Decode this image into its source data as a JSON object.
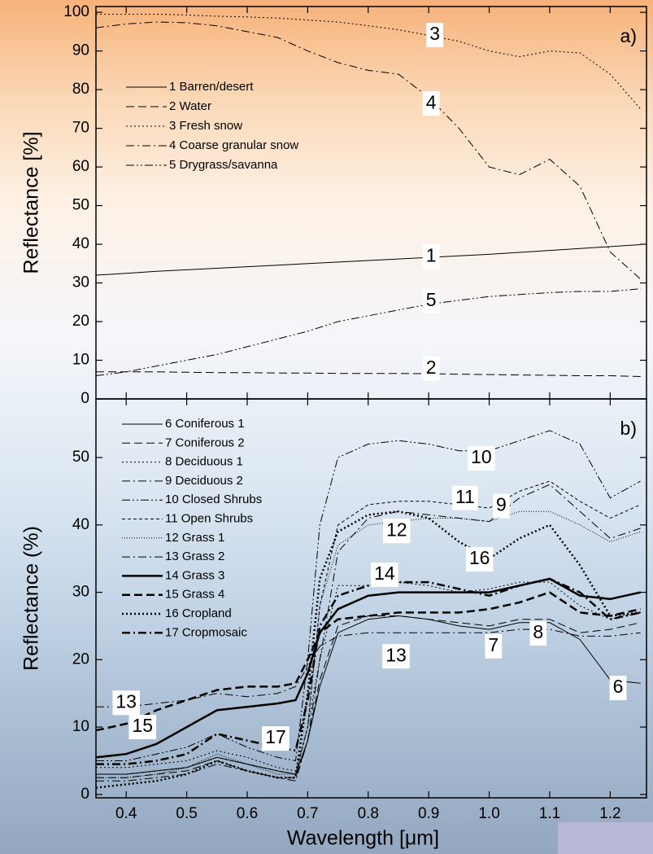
{
  "chart_data": [
    {
      "type": "line",
      "ylabel": "Reflectance [%]",
      "panel_label": "a)",
      "color": "#000000",
      "xlim": [
        0.35,
        1.26
      ],
      "ylim": [
        0,
        101.5
      ],
      "yticks": [
        0,
        10,
        20,
        30,
        40,
        50,
        60,
        70,
        80,
        90,
        100
      ],
      "x": [
        0.35,
        0.4,
        0.45,
        0.5,
        0.55,
        0.6,
        0.65,
        0.7,
        0.75,
        0.8,
        0.85,
        0.9,
        0.95,
        1.0,
        1.05,
        1.1,
        1.15,
        1.2,
        1.25
      ],
      "series": [
        {
          "name": "1 Barren/desert",
          "dash": "solid",
          "width": 1,
          "values": [
            32,
            32.5,
            33,
            33.4,
            33.8,
            34.2,
            34.6,
            35,
            35.4,
            35.8,
            36.2,
            36.6,
            37,
            37.4,
            37.9,
            38.4,
            38.9,
            39.4,
            39.9
          ]
        },
        {
          "name": "2 Water",
          "dash": "dashed",
          "width": 1,
          "values": [
            7,
            7,
            7,
            6.9,
            6.8,
            6.8,
            6.7,
            6.7,
            6.6,
            6.6,
            6.6,
            6.5,
            6.4,
            6.3,
            6.2,
            6.1,
            6,
            6,
            5.8
          ]
        },
        {
          "name": "3 Fresh snow",
          "dash": "dotted",
          "width": 1,
          "values": [
            99.5,
            99.5,
            99.5,
            99.3,
            99,
            98.8,
            98.5,
            98,
            97.5,
            96.5,
            95.5,
            94,
            92.5,
            90,
            88.5,
            90,
            89.5,
            84,
            75
          ]
        },
        {
          "name": "4 Coarse granular snow",
          "dash": "dashdot",
          "width": 1,
          "values": [
            96,
            97,
            97.5,
            97.3,
            96.5,
            95,
            93.5,
            90,
            87,
            85,
            84,
            78,
            70,
            60,
            58,
            62,
            55,
            38,
            31
          ]
        },
        {
          "name": "5 Drygrass/savanna",
          "dash": "dashdotdot",
          "width": 1,
          "values": [
            6,
            7,
            8.5,
            10,
            11.5,
            13.5,
            15.5,
            17.5,
            20,
            21.5,
            23,
            24.5,
            25.5,
            26.5,
            27,
            27.5,
            27.8,
            27.8,
            28.5
          ]
        }
      ],
      "annotations": [
        {
          "text": "3",
          "x": 0.91,
          "y": 94.1
        },
        {
          "text": "4",
          "x": 0.904,
          "y": 76.4
        },
        {
          "text": "1",
          "x": 0.904,
          "y": 36.8
        },
        {
          "text": "5",
          "x": 0.904,
          "y": 25.3
        },
        {
          "text": "2",
          "x": 0.904,
          "y": 7.8
        }
      ]
    },
    {
      "type": "line",
      "ylabel": "Reflectance (%)",
      "xlabel": "Wavelength [μm]",
      "panel_label": "b)",
      "color": "#000000",
      "xlim": [
        0.35,
        1.26
      ],
      "ylim": [
        -0.5,
        58.7
      ],
      "xticks": [
        0.4,
        0.5,
        0.6,
        0.7,
        0.8,
        0.9,
        {
          "value": 1,
          "label": "1.0"
        },
        1.1,
        1.2
      ],
      "yticks": [
        0,
        10,
        20,
        30,
        40,
        50
      ],
      "x": [
        0.35,
        0.4,
        0.45,
        0.5,
        0.55,
        0.6,
        0.65,
        0.68,
        0.7,
        0.72,
        0.75,
        0.8,
        0.85,
        0.9,
        0.95,
        1.0,
        1.05,
        1.1,
        1.15,
        1.2,
        1.25
      ],
      "series": [
        {
          "name": "6 Coniferous 1",
          "dash": "solid",
          "width": 1,
          "values": [
            3,
            3,
            3.5,
            4,
            5.5,
            4.5,
            3.5,
            3,
            8,
            16,
            24,
            26,
            26.5,
            26,
            25,
            24.5,
            25.5,
            25.5,
            23,
            17,
            16.5
          ]
        },
        {
          "name": "7 Coniferous 2",
          "dash": "dashed",
          "width": 1,
          "values": [
            2.5,
            2.5,
            3,
            3.5,
            5,
            3.5,
            2.5,
            2.5,
            8,
            17,
            25,
            26.5,
            26.5,
            26,
            25.5,
            25,
            26,
            26,
            24,
            24.5,
            25.5
          ]
        },
        {
          "name": "8 Deciduous 1",
          "dash": "dotted",
          "width": 1,
          "values": [
            4,
            4,
            4.5,
            5,
            6.5,
            5.5,
            4,
            3.5,
            10,
            20,
            31,
            31,
            31.5,
            31,
            30,
            30.5,
            31.5,
            31.5,
            28,
            26,
            27
          ]
        },
        {
          "name": "9 Deciduous 2",
          "dash": "dashdot",
          "width": 1,
          "values": [
            2,
            2,
            2.5,
            3,
            4.5,
            3.5,
            2.5,
            2,
            8,
            20,
            36,
            41,
            42,
            41.5,
            41,
            40.5,
            44,
            46,
            42,
            38,
            39.5
          ]
        },
        {
          "name": "10 Closed Shrubs",
          "dash": "dashdotdot",
          "width": 1,
          "values": [
            5,
            5,
            6,
            7,
            9,
            7,
            5.5,
            5,
            20,
            40,
            50,
            52,
            52.5,
            52,
            51,
            51,
            52.5,
            54,
            52,
            44,
            46.5
          ]
        },
        {
          "name": "11 Open Shrubs",
          "dash": "shortdash",
          "width": 1,
          "values": [
            3,
            3,
            3.5,
            4,
            5.5,
            4.5,
            3.5,
            3,
            10,
            28,
            40,
            43,
            43.5,
            43.5,
            43,
            42.5,
            45,
            46.5,
            43.5,
            41,
            43
          ]
        },
        {
          "name": "12 Grass 1",
          "dash": "densedot",
          "width": 1,
          "values": [
            2.5,
            2.5,
            3,
            4,
            6,
            4.5,
            3,
            3,
            10,
            28,
            37,
            40,
            40.5,
            41,
            41,
            40.5,
            42,
            42,
            40,
            37.5,
            39
          ]
        },
        {
          "name": "13 Grass 2",
          "dash": "dashdot",
          "width": 1,
          "values": [
            13,
            13,
            13.5,
            14,
            15,
            14.5,
            15,
            16,
            19,
            22,
            23.5,
            24,
            24,
            24,
            24,
            24,
            24.5,
            24.5,
            23.5,
            23.5,
            24
          ]
        },
        {
          "name": "14 Grass 3",
          "dash": "solid",
          "width": 2.5,
          "values": [
            5.5,
            6,
            7.5,
            10,
            12.5,
            13,
            13.5,
            14,
            18,
            24,
            27.5,
            29.5,
            30,
            30,
            30,
            30,
            31,
            32,
            29.5,
            29,
            30
          ]
        },
        {
          "name": "15 Grass 4",
          "dash": "dashed",
          "width": 2.5,
          "values": [
            9.5,
            10.5,
            12.5,
            14,
            15.5,
            16,
            16,
            16.5,
            20,
            24,
            26,
            26.5,
            27,
            27,
            27,
            27.5,
            28.5,
            30,
            27,
            26.5,
            27.5
          ]
        },
        {
          "name": "16 Cropland",
          "dash": "dotted",
          "width": 2.5,
          "values": [
            1,
            1.5,
            2,
            3,
            5,
            3.5,
            2.5,
            2.5,
            15,
            32,
            39,
            41.5,
            42,
            41,
            37.5,
            35,
            38,
            40,
            34,
            26.5,
            27
          ]
        },
        {
          "name": "17 Cropmosaic",
          "dash": "dashdot",
          "width": 2.5,
          "values": [
            4.5,
            4.5,
            5,
            6,
            9,
            8,
            7,
            6.5,
            14,
            25,
            29.5,
            31,
            31.5,
            31.5,
            30.5,
            29.5,
            31,
            32,
            30,
            26,
            27
          ]
        }
      ],
      "annotations": [
        {
          "text": "10",
          "x": 0.987,
          "y": 49.9
        },
        {
          "text": "11",
          "x": 0.96,
          "y": 44
        },
        {
          "text": "9",
          "x": 1.02,
          "y": 42.8
        },
        {
          "text": "12",
          "x": 0.847,
          "y": 39.1
        },
        {
          "text": "16",
          "x": 0.984,
          "y": 34.9
        },
        {
          "text": "14",
          "x": 0.827,
          "y": 32.6
        },
        {
          "text": "8",
          "x": 1.081,
          "y": 23.9
        },
        {
          "text": "7",
          "x": 1.007,
          "y": 22
        },
        {
          "text": "13",
          "x": 0.846,
          "y": 20.5
        },
        {
          "text": "6",
          "x": 1.213,
          "y": 15.8
        },
        {
          "text": "13",
          "x": 0.4,
          "y": 13.6
        },
        {
          "text": "15",
          "x": 0.427,
          "y": 10
        },
        {
          "text": "17",
          "x": 0.647,
          "y": 8.3
        }
      ]
    }
  ]
}
